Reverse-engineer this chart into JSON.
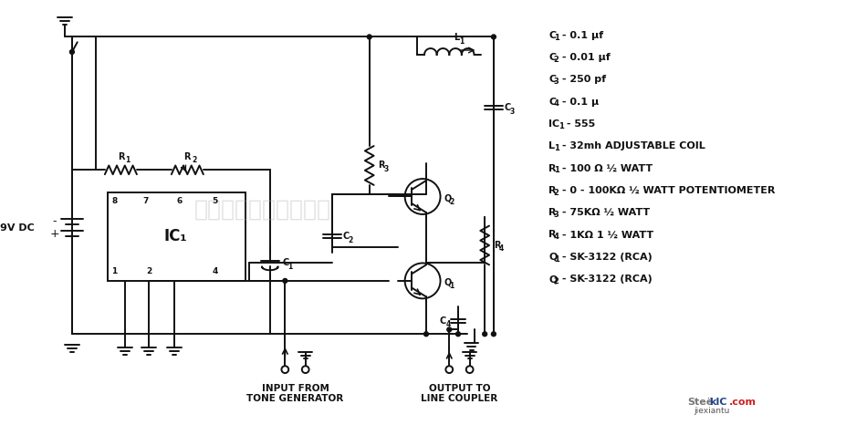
{
  "bg_color": "#ffffff",
  "fig_width": 9.28,
  "fig_height": 4.66,
  "dpi": 100,
  "watermark_text": "杭州将睿科技有限公司",
  "watermark_color": "#aaaaaa",
  "watermark_alpha": 0.35,
  "parts_list": [
    [
      "C",
      "1",
      " - 0.1 μf"
    ],
    [
      "C",
      "2",
      " - 0.01 μf"
    ],
    [
      "C",
      "3",
      " - 250 pf"
    ],
    [
      "C",
      "4",
      " - 0.1 μ"
    ],
    [
      "IC",
      "1",
      " - 555"
    ],
    [
      "L",
      "1",
      " - 32mh ADJUSTABLE COIL"
    ],
    [
      "R",
      "1",
      " - 100 Ω ½ WATT"
    ],
    [
      "R",
      "2",
      " - 0 - 100KΩ ½ WATT POTENTIOMETER"
    ],
    [
      "R",
      "3",
      " - 75KΩ ½ WATT"
    ],
    [
      "R",
      "4",
      " - 1KΩ 1 ½ WATT"
    ],
    [
      "Q",
      "1",
      " - SK-3122 (RCA)"
    ],
    [
      "Q",
      "2",
      " - SK-3122 (RCA)"
    ]
  ],
  "label_input": "INPUT FROM\nTONE GENERATOR",
  "label_output": "OUTPUT TO\nLINE COUPLER",
  "label_voltage": "9V DC",
  "line_color": "#111111",
  "line_width": 1.4
}
